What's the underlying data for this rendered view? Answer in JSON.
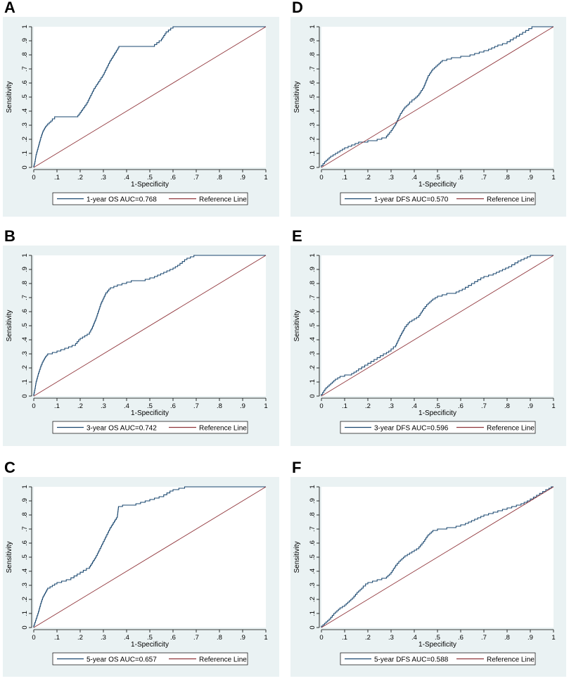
{
  "colors": {
    "panel_bg": "#eaf2f3",
    "roc_line": "#1a476f",
    "ref_line": "#90353b",
    "axis": "#000000"
  },
  "chart_data": [
    {
      "panel": "A",
      "type": "line",
      "xlabel": "1-Specificity",
      "ylabel": "Sensitivity",
      "xlim": [
        0,
        1
      ],
      "ylim": [
        0,
        1
      ],
      "ticks": [
        "0",
        ".1",
        ".2",
        ".3",
        ".4",
        ".5",
        ".6",
        ".7",
        ".8",
        ".9",
        "1"
      ],
      "series": [
        {
          "name": "1-year OS AUC=0.768",
          "style": "step",
          "x": [
            0,
            0.005,
            0.01,
            0.02,
            0.03,
            0.04,
            0.05,
            0.06,
            0.08,
            0.1,
            0.19,
            0.2,
            0.23,
            0.26,
            0.3,
            0.33,
            0.36,
            0.37,
            0.52,
            0.55,
            0.57,
            0.6,
            0.61,
            1.0
          ],
          "y": [
            0,
            0.03,
            0.08,
            0.14,
            0.2,
            0.25,
            0.28,
            0.3,
            0.33,
            0.36,
            0.36,
            0.38,
            0.45,
            0.55,
            0.65,
            0.75,
            0.83,
            0.86,
            0.86,
            0.9,
            0.95,
            0.99,
            1.0,
            1.0
          ]
        },
        {
          "name": "Reference Line",
          "style": "line",
          "x": [
            0,
            1
          ],
          "y": [
            0,
            1
          ]
        }
      ]
    },
    {
      "panel": "B",
      "type": "line",
      "xlabel": "1-Specificity",
      "ylabel": "Sensitivity",
      "xlim": [
        0,
        1
      ],
      "ylim": [
        0,
        1
      ],
      "ticks": [
        "0",
        ".1",
        ".2",
        ".3",
        ".4",
        ".5",
        ".6",
        ".7",
        ".8",
        ".9",
        "1"
      ],
      "series": [
        {
          "name": "3-year OS AUC=0.742",
          "style": "step",
          "x": [
            0,
            0.005,
            0.01,
            0.02,
            0.03,
            0.04,
            0.05,
            0.06,
            0.1,
            0.15,
            0.18,
            0.2,
            0.22,
            0.24,
            0.25,
            0.27,
            0.29,
            0.31,
            0.33,
            0.36,
            0.4,
            0.44,
            0.48,
            0.52,
            0.56,
            0.6,
            0.63,
            0.66,
            0.69,
            0.7,
            1.0
          ],
          "y": [
            0,
            0.04,
            0.09,
            0.15,
            0.2,
            0.24,
            0.27,
            0.29,
            0.31,
            0.34,
            0.36,
            0.4,
            0.42,
            0.44,
            0.47,
            0.55,
            0.65,
            0.72,
            0.76,
            0.78,
            0.8,
            0.82,
            0.82,
            0.84,
            0.87,
            0.9,
            0.93,
            0.97,
            0.99,
            1.0,
            1.0
          ]
        },
        {
          "name": "Reference Line",
          "style": "line",
          "x": [
            0,
            1
          ],
          "y": [
            0,
            1
          ]
        }
      ]
    },
    {
      "panel": "C",
      "type": "line",
      "xlabel": "1-Specificity",
      "ylabel": "Sensitivity",
      "xlim": [
        0,
        1
      ],
      "ylim": [
        0,
        1
      ],
      "ticks": [
        "0",
        ".1",
        ".2",
        ".3",
        ".4",
        ".5",
        ".6",
        ".7",
        ".8",
        ".9",
        "1"
      ],
      "series": [
        {
          "name": "5-year OS AUC=0.657",
          "style": "step",
          "x": [
            0,
            0.01,
            0.02,
            0.03,
            0.04,
            0.05,
            0.06,
            0.08,
            0.1,
            0.16,
            0.2,
            0.24,
            0.27,
            0.3,
            0.33,
            0.36,
            0.365,
            0.4,
            0.44,
            0.48,
            0.52,
            0.56,
            0.6,
            0.65,
            0.69,
            0.7,
            1.0
          ],
          "y": [
            0,
            0.05,
            0.1,
            0.16,
            0.21,
            0.24,
            0.27,
            0.29,
            0.31,
            0.34,
            0.38,
            0.42,
            0.5,
            0.6,
            0.7,
            0.78,
            0.85,
            0.87,
            0.87,
            0.89,
            0.91,
            0.93,
            0.97,
            0.99,
            1.0,
            1.0,
            1.0
          ]
        },
        {
          "name": "Reference Line",
          "style": "line",
          "x": [
            0,
            1
          ],
          "y": [
            0,
            1
          ]
        }
      ]
    },
    {
      "panel": "D",
      "type": "line",
      "xlabel": "1-Specificity",
      "ylabel": "Sensitivity",
      "xlim": [
        0,
        1
      ],
      "ylim": [
        0,
        1
      ],
      "ticks": [
        "0",
        ".1",
        ".2",
        ".3",
        ".4",
        ".5",
        ".6",
        ".7",
        ".8",
        ".9",
        "1"
      ],
      "series": [
        {
          "name": "1-year DFS AUC=0.570",
          "style": "step",
          "x": [
            0,
            0.02,
            0.04,
            0.06,
            0.08,
            0.1,
            0.13,
            0.16,
            0.2,
            0.24,
            0.28,
            0.3,
            0.32,
            0.34,
            0.36,
            0.38,
            0.4,
            0.42,
            0.44,
            0.46,
            0.48,
            0.5,
            0.52,
            0.56,
            0.6,
            0.64,
            0.68,
            0.72,
            0.76,
            0.8,
            0.84,
            0.88,
            0.92,
            1.0
          ],
          "y": [
            0,
            0.04,
            0.07,
            0.09,
            0.11,
            0.13,
            0.15,
            0.17,
            0.18,
            0.19,
            0.21,
            0.25,
            0.3,
            0.37,
            0.42,
            0.45,
            0.48,
            0.51,
            0.56,
            0.64,
            0.69,
            0.72,
            0.75,
            0.77,
            0.78,
            0.79,
            0.81,
            0.83,
            0.86,
            0.88,
            0.92,
            0.96,
            1.0,
            1.0
          ]
        },
        {
          "name": "Reference Line",
          "style": "line",
          "x": [
            0,
            1
          ],
          "y": [
            0,
            1
          ]
        }
      ]
    },
    {
      "panel": "E",
      "type": "line",
      "xlabel": "1-Specificity",
      "ylabel": "Sensitivity",
      "xlim": [
        0,
        1
      ],
      "ylim": [
        0,
        1
      ],
      "ticks": [
        "0",
        ".1",
        ".2",
        ".3",
        ".4",
        ".5",
        ".6",
        ".7",
        ".8",
        ".9",
        "1"
      ],
      "series": [
        {
          "name": "3-year DFS AUC=0.596",
          "style": "step",
          "x": [
            0,
            0.02,
            0.04,
            0.06,
            0.08,
            0.1,
            0.13,
            0.16,
            0.2,
            0.24,
            0.28,
            0.3,
            0.32,
            0.34,
            0.36,
            0.38,
            0.4,
            0.42,
            0.44,
            0.46,
            0.48,
            0.5,
            0.54,
            0.58,
            0.62,
            0.66,
            0.7,
            0.74,
            0.78,
            0.82,
            0.86,
            0.9,
            0.93,
            1.0
          ],
          "y": [
            0,
            0.05,
            0.08,
            0.11,
            0.13,
            0.14,
            0.15,
            0.18,
            0.22,
            0.26,
            0.3,
            0.32,
            0.35,
            0.42,
            0.48,
            0.52,
            0.54,
            0.56,
            0.61,
            0.65,
            0.68,
            0.7,
            0.72,
            0.73,
            0.76,
            0.8,
            0.84,
            0.86,
            0.89,
            0.92,
            0.96,
            0.99,
            1.0,
            1.0
          ]
        },
        {
          "name": "Reference Line",
          "style": "line",
          "x": [
            0,
            1
          ],
          "y": [
            0,
            1
          ]
        }
      ]
    },
    {
      "panel": "F",
      "type": "line",
      "xlabel": "1-Specificity",
      "ylabel": "Sensitivity",
      "xlim": [
        0,
        1
      ],
      "ylim": [
        0,
        1
      ],
      "ticks": [
        "0",
        ".1",
        ".2",
        ".3",
        ".4",
        ".5",
        ".6",
        ".7",
        ".8",
        ".9",
        "1"
      ],
      "series": [
        {
          "name": "5-year DFS AUC=0.588",
          "style": "step",
          "x": [
            0,
            0.02,
            0.04,
            0.06,
            0.08,
            0.1,
            0.12,
            0.14,
            0.16,
            0.18,
            0.2,
            0.24,
            0.28,
            0.3,
            0.32,
            0.34,
            0.36,
            0.38,
            0.4,
            0.42,
            0.44,
            0.46,
            0.48,
            0.5,
            0.54,
            0.58,
            0.62,
            0.66,
            0.7,
            0.74,
            0.78,
            0.82,
            0.86,
            0.9,
            0.94,
            0.98,
            1.0
          ],
          "y": [
            0,
            0.03,
            0.06,
            0.1,
            0.13,
            0.15,
            0.18,
            0.21,
            0.25,
            0.28,
            0.31,
            0.33,
            0.35,
            0.38,
            0.43,
            0.47,
            0.5,
            0.52,
            0.54,
            0.56,
            0.6,
            0.65,
            0.68,
            0.69,
            0.7,
            0.71,
            0.73,
            0.76,
            0.79,
            0.81,
            0.83,
            0.85,
            0.87,
            0.9,
            0.94,
            0.98,
            1.0
          ]
        },
        {
          "name": "Reference Line",
          "style": "line",
          "x": [
            0,
            1
          ],
          "y": [
            0,
            1
          ]
        }
      ]
    }
  ]
}
